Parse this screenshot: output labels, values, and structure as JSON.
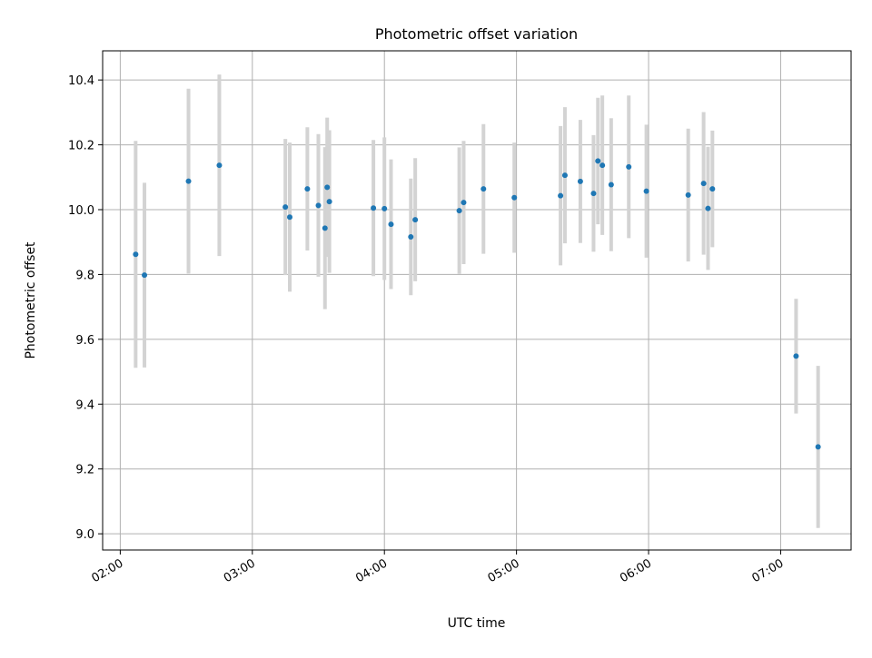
{
  "chart_data": {
    "type": "scatter",
    "title": "Photometric offset variation",
    "xlabel": "UTC time",
    "ylabel": "Photometric offset",
    "x_axis_kind": "time (HH:MM)",
    "xlim": [
      "01:52",
      "07:32"
    ],
    "ylim": [
      8.95,
      10.49
    ],
    "x_ticks": [
      "02:00",
      "03:00",
      "04:00",
      "05:00",
      "06:00",
      "07:00"
    ],
    "y_ticks": [
      "9.0",
      "9.2",
      "9.4",
      "9.6",
      "9.8",
      "10.0",
      "10.2",
      "10.4"
    ],
    "grid": true,
    "x_tick_rotation": "rotated ~30°",
    "colors": {
      "point": "#1f77b4",
      "errorbar": "#d3d3d3",
      "grid": "#b0b0b0"
    },
    "points": [
      {
        "x": "02:07",
        "y": 9.862,
        "err": 0.35
      },
      {
        "x": "02:11",
        "y": 9.798,
        "err": 0.285
      },
      {
        "x": "02:31",
        "y": 10.088,
        "err": 0.285
      },
      {
        "x": "02:45",
        "y": 10.137,
        "err": 0.28
      },
      {
        "x": "03:15",
        "y": 10.008,
        "err": 0.21
      },
      {
        "x": "03:17",
        "y": 9.977,
        "err": 0.23
      },
      {
        "x": "03:25",
        "y": 10.064,
        "err": 0.19
      },
      {
        "x": "03:30",
        "y": 10.013,
        "err": 0.22
      },
      {
        "x": "03:33",
        "y": 9.943,
        "err": 0.25
      },
      {
        "x": "03:34",
        "y": 10.069,
        "err": 0.215
      },
      {
        "x": "03:35",
        "y": 10.025,
        "err": 0.22
      },
      {
        "x": "03:55",
        "y": 10.005,
        "err": 0.21
      },
      {
        "x": "04:00",
        "y": 10.003,
        "err": 0.22
      },
      {
        "x": "04:03",
        "y": 9.955,
        "err": 0.2
      },
      {
        "x": "04:12",
        "y": 9.916,
        "err": 0.18
      },
      {
        "x": "04:14",
        "y": 9.969,
        "err": 0.19
      },
      {
        "x": "04:34",
        "y": 9.997,
        "err": 0.195
      },
      {
        "x": "04:36",
        "y": 10.022,
        "err": 0.19
      },
      {
        "x": "04:45",
        "y": 10.064,
        "err": 0.2
      },
      {
        "x": "04:59",
        "y": 10.037,
        "err": 0.17
      },
      {
        "x": "05:20",
        "y": 10.043,
        "err": 0.215
      },
      {
        "x": "05:22",
        "y": 10.106,
        "err": 0.21
      },
      {
        "x": "05:29",
        "y": 10.087,
        "err": 0.19
      },
      {
        "x": "05:35",
        "y": 10.05,
        "err": 0.18
      },
      {
        "x": "05:37",
        "y": 10.15,
        "err": 0.195
      },
      {
        "x": "05:39",
        "y": 10.137,
        "err": 0.215
      },
      {
        "x": "05:43",
        "y": 10.077,
        "err": 0.205
      },
      {
        "x": "05:51",
        "y": 10.132,
        "err": 0.22
      },
      {
        "x": "05:59",
        "y": 10.057,
        "err": 0.205
      },
      {
        "x": "06:18",
        "y": 10.045,
        "err": 0.205
      },
      {
        "x": "06:25",
        "y": 10.081,
        "err": 0.22
      },
      {
        "x": "06:27",
        "y": 10.004,
        "err": 0.19
      },
      {
        "x": "06:29",
        "y": 10.064,
        "err": 0.18
      },
      {
        "x": "07:07",
        "y": 9.548,
        "err": 0.177
      },
      {
        "x": "07:17",
        "y": 9.268,
        "err": 0.25
      }
    ]
  }
}
